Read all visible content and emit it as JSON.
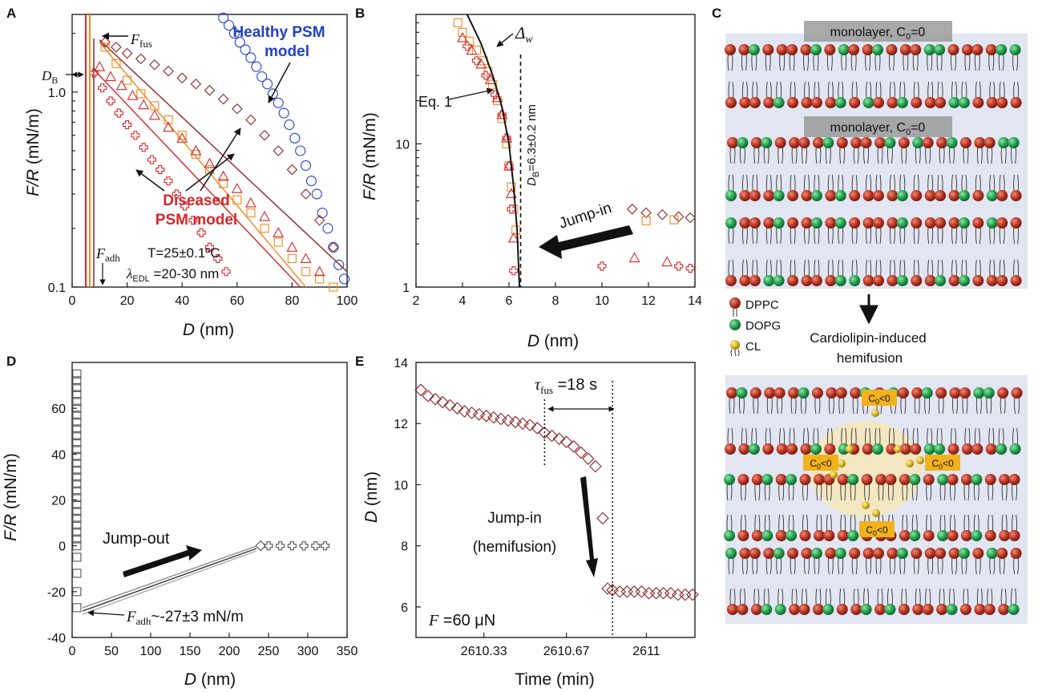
{
  "panel_letters": {
    "A": "A",
    "B": "B",
    "C": "C",
    "D": "D",
    "E": "E"
  },
  "colors": {
    "red": "#d7262b",
    "orange": "#ef8a1f",
    "darkred": "#8b2525",
    "blue": "#2140c8",
    "gray": "#555555",
    "lipid_red": "#a82a1d",
    "lipid_green": "#1f9b4a",
    "cl_yellow": "#d8b21f",
    "membrane_bg": "#dfe3f1"
  },
  "chart_data": [
    {
      "id": "A",
      "type": "scatter",
      "xlabel_italic": "D",
      "xlabel_rest": " (nm)",
      "ylabel_italic": "F/R",
      "ylabel_rest": " (mN/m)",
      "xlim": [
        0,
        100
      ],
      "ylim": [
        0.1,
        2.5
      ],
      "yscale": "log",
      "xticks": [
        "0",
        "20",
        "40",
        "60",
        "80",
        "100"
      ],
      "yticks": [
        {
          "v": 0.1,
          "label": "0.1"
        },
        {
          "v": 1.0,
          "label": "1.0"
        }
      ],
      "annotations": {
        "ffus_italic": "F",
        "ffus_sub": "fus",
        "db_italic": "D",
        "db_sub": "B",
        "healthy_1": "Healthy PSM",
        "healthy_2": "model",
        "diseased_1": "Diseased",
        "diseased_2": "PSM model",
        "fadh_italic": "F",
        "fadh_sub": "adh",
        "temp": "T=25±0.1ºC",
        "lambda_sym": "λ",
        "lambda_sub": "EDL",
        "lambda_rest": " =20-30 nm"
      },
      "series": [
        {
          "color": "blue",
          "marker": "circle",
          "x": [
            55,
            57,
            59,
            61,
            63,
            65,
            67,
            69,
            71,
            73,
            75,
            77,
            79,
            81,
            83,
            85,
            87,
            89,
            91,
            93,
            95,
            97,
            99
          ],
          "y": [
            2.4,
            2.2,
            2.0,
            1.8,
            1.65,
            1.5,
            1.35,
            1.2,
            1.1,
            0.98,
            0.88,
            0.78,
            0.68,
            0.58,
            0.5,
            0.42,
            0.35,
            0.3,
            0.24,
            0.2,
            0.16,
            0.13,
            0.11
          ]
        },
        {
          "color": "darkred",
          "marker": "diamond",
          "x": [
            12,
            16,
            20,
            25,
            30,
            35,
            40,
            45,
            50,
            55,
            60,
            65,
            70,
            75,
            80,
            85,
            90,
            95
          ],
          "y": [
            1.8,
            1.7,
            1.58,
            1.48,
            1.38,
            1.28,
            1.18,
            1.1,
            1.02,
            0.92,
            0.82,
            0.72,
            0.6,
            0.5,
            0.4,
            0.3,
            0.22,
            0.16
          ]
        },
        {
          "color": "orange",
          "marker": "square",
          "x": [
            12,
            16,
            20,
            25,
            30,
            35,
            40,
            45,
            50,
            55,
            60,
            65,
            70,
            75,
            80,
            85,
            90,
            95
          ],
          "y": [
            1.7,
            1.4,
            1.15,
            0.98,
            0.85,
            0.72,
            0.6,
            0.48,
            0.4,
            0.34,
            0.28,
            0.24,
            0.2,
            0.17,
            0.14,
            0.12,
            0.11,
            0.1
          ]
        },
        {
          "color": "red",
          "marker": "triangle",
          "x": [
            10,
            14,
            18,
            22,
            26,
            30,
            35,
            40,
            45,
            50,
            55,
            60,
            65,
            70,
            75,
            80,
            85,
            90
          ],
          "y": [
            1.35,
            1.2,
            1.08,
            0.96,
            0.86,
            0.76,
            0.66,
            0.58,
            0.5,
            0.43,
            0.37,
            0.32,
            0.27,
            0.23,
            0.19,
            0.16,
            0.14,
            0.12
          ]
        },
        {
          "color": "red",
          "marker": "plus",
          "x": [
            8,
            11,
            14,
            17,
            20,
            23,
            26,
            29,
            32,
            35,
            38,
            41,
            44,
            47,
            50,
            53,
            56
          ],
          "y": [
            1.25,
            1.05,
            0.9,
            0.78,
            0.68,
            0.6,
            0.52,
            0.45,
            0.4,
            0.35,
            0.3,
            0.26,
            0.22,
            0.19,
            0.16,
            0.14,
            0.12
          ]
        }
      ],
      "fit_lines": [
        {
          "color": "darkred",
          "x": [
            10,
            100
          ],
          "y": [
            1.85,
            0.12
          ]
        },
        {
          "color": "orange",
          "x": [
            10,
            85
          ],
          "y": [
            1.8,
            0.1
          ]
        },
        {
          "color": "red",
          "x": [
            8,
            83
          ],
          "y": [
            1.3,
            0.1
          ]
        }
      ]
    },
    {
      "id": "B",
      "type": "scatter",
      "xlabel_italic": "D",
      "xlabel_rest": " (nm)",
      "ylabel_italic": "F/R",
      "ylabel_rest": " (mN/m)",
      "xlim": [
        2,
        14
      ],
      "ylim": [
        1,
        80
      ],
      "yscale": "log",
      "xticks": [
        "2",
        "4",
        "6",
        "8",
        "10",
        "12",
        "14"
      ],
      "yticks": [
        {
          "v": 1,
          "label": "1"
        },
        {
          "v": 10,
          "label": "10"
        }
      ],
      "annotations": {
        "delta_sym": "Δ",
        "delta_sub": "w",
        "eq": "Eq. 1",
        "db_label": "D",
        "db_sub": "B",
        "db_rest": "=6.3±0.2 nm",
        "jump": "Jump-in"
      },
      "series": [
        {
          "color": "orange",
          "marker": "square",
          "x": [
            3.8,
            4.0,
            4.3,
            4.6,
            4.9,
            5.1,
            5.3,
            5.5,
            5.7,
            5.9,
            6.0,
            6.1,
            6.2,
            6.3
          ],
          "y": [
            70,
            60,
            52,
            45,
            38,
            32,
            26,
            20,
            15,
            10,
            7,
            5,
            3.5,
            2.5
          ]
        },
        {
          "color": "red",
          "marker": "triangle",
          "x": [
            4.0,
            4.4,
            4.8,
            5.2,
            5.5,
            5.7,
            5.9,
            6.0,
            6.1,
            6.2
          ],
          "y": [
            55,
            45,
            36,
            28,
            21,
            16,
            11,
            7,
            4.5,
            2.2
          ]
        },
        {
          "color": "red",
          "marker": "plus",
          "x": [
            4.2,
            4.6,
            5.0,
            5.4,
            5.7,
            5.9,
            6.0,
            6.1,
            6.2,
            10.0,
            13.3,
            13.8
          ],
          "y": [
            48,
            38,
            30,
            22,
            16,
            11,
            7,
            3.5,
            1.3,
            1.4,
            1.4,
            1.35
          ]
        },
        {
          "color": "darkred",
          "marker": "diamond",
          "x": [
            11.3,
            11.9,
            12.6,
            13.3,
            13.8
          ],
          "y": [
            3.5,
            3.3,
            3.2,
            3.1,
            3.05
          ]
        },
        {
          "color": "orange",
          "marker": "square",
          "x": [
            11.9,
            13.1
          ],
          "y": [
            2.9,
            2.95
          ]
        },
        {
          "color": "red",
          "marker": "triangle",
          "x": [
            11.4,
            12.8
          ],
          "y": [
            1.6,
            1.5
          ]
        }
      ],
      "fit_line": {
        "x": [
          4.2,
          4.8,
          5.3,
          5.7,
          6.0,
          6.2,
          6.35,
          6.45
        ],
        "y": [
          80,
          50,
          30,
          18,
          10,
          5,
          2.5,
          1
        ]
      },
      "dashed_x": 6.5
    },
    {
      "id": "D",
      "type": "scatter",
      "xlabel_italic": "D",
      "xlabel_rest": " (nm)",
      "ylabel_italic": "F/R",
      "ylabel_rest": " (mN/m)",
      "xlim": [
        0,
        350
      ],
      "ylim": [
        -40,
        80
      ],
      "xticks": [
        "0",
        "50",
        "100",
        "150",
        "200",
        "250",
        "300",
        "350"
      ],
      "yticks": [
        "-40",
        "-20",
        "0",
        "20",
        "40",
        "60"
      ],
      "annotations": {
        "jump": "Jump-out",
        "fadh_italic": "F",
        "fadh_sub": "adh",
        "fadh_rest": "~-27±3 mN/m"
      },
      "series": [
        {
          "color": "gray",
          "marker": "square",
          "x": [
            6,
            6,
            6,
            6,
            6,
            6,
            6,
            6,
            6,
            6,
            6,
            6,
            6,
            6,
            6,
            6,
            6,
            6,
            6,
            6,
            6,
            6,
            6,
            6,
            6,
            6,
            6,
            6,
            6,
            6
          ],
          "y": [
            75,
            72,
            69,
            66,
            63,
            60,
            57,
            54,
            51,
            48,
            45,
            42,
            39,
            36,
            33,
            30,
            27,
            24,
            21,
            18,
            15,
            12,
            9,
            6,
            3,
            0,
            -5,
            -12,
            -20,
            -27
          ]
        },
        {
          "color": "gray",
          "marker": "plus",
          "x": [
            250,
            265,
            280,
            295,
            310,
            322
          ],
          "y": [
            0,
            0,
            0,
            0,
            0,
            0
          ]
        },
        {
          "color": "gray",
          "marker": "diamond",
          "x": [
            240
          ],
          "y": [
            0
          ]
        }
      ]
    },
    {
      "id": "E",
      "type": "scatter",
      "xlabel": "Time (min)",
      "ylabel_italic": "D",
      "ylabel_rest": " (nm)",
      "xlim": [
        2610.05,
        2611.2
      ],
      "ylim": [
        5,
        14
      ],
      "xticks": [
        {
          "v": 2610.33,
          "label": "2610.33"
        },
        {
          "v": 2610.67,
          "label": "2610.67"
        },
        {
          "v": 2611,
          "label": "2611"
        }
      ],
      "yticks": [
        "6",
        "8",
        "10",
        "12",
        "14"
      ],
      "annotations": {
        "tau_sym": "τ",
        "tau_sub": "fus",
        "tau_rest": " =18 s",
        "jump1": "Jump-in",
        "jump2": "(hemifusion)",
        "force_italic": "F",
        "force_rest": " =60 μN"
      },
      "vlines": [
        2610.58,
        2610.86
      ],
      "series": [
        {
          "color": "darkred",
          "marker": "diamond",
          "x": [
            2610.07,
            2610.1,
            2610.13,
            2610.16,
            2610.19,
            2610.22,
            2610.25,
            2610.28,
            2610.31,
            2610.34,
            2610.37,
            2610.4,
            2610.43,
            2610.46,
            2610.49,
            2610.52,
            2610.55,
            2610.58,
            2610.61,
            2610.64,
            2610.67,
            2610.7,
            2610.73,
            2610.76,
            2610.79,
            2610.82,
            2610.84,
            2610.86,
            2610.89,
            2610.92,
            2610.95,
            2610.98,
            2611.01,
            2611.04,
            2611.07,
            2611.1,
            2611.13,
            2611.16,
            2611.19
          ],
          "y": [
            13.1,
            12.9,
            12.8,
            12.7,
            12.6,
            12.5,
            12.4,
            12.35,
            12.3,
            12.25,
            12.2,
            12.15,
            12.1,
            12.05,
            12.0,
            11.95,
            11.85,
            11.7,
            11.6,
            11.5,
            11.4,
            11.25,
            11.05,
            10.85,
            10.6,
            8.9,
            6.6,
            6.55,
            6.5,
            6.5,
            6.5,
            6.5,
            6.45,
            6.45,
            6.45,
            6.45,
            6.4,
            6.4,
            6.4
          ]
        }
      ]
    }
  ],
  "panel_C": {
    "label_mono_top": "monolayer, C",
    "label_mono_top_sub": "0",
    "label_mono_top_rest": "=0",
    "label_mono_mid": "monolayer, C",
    "label_mono_mid_sub": "0",
    "label_mono_mid_rest": "=0",
    "legend": [
      "DPPC",
      "DOPG",
      "CL"
    ],
    "arrow_text_1": "Cardiolipin-induced",
    "arrow_text_2": "hemifusion",
    "c0_label": "C",
    "c0_sub": "0",
    "c0_rest": "<0"
  }
}
